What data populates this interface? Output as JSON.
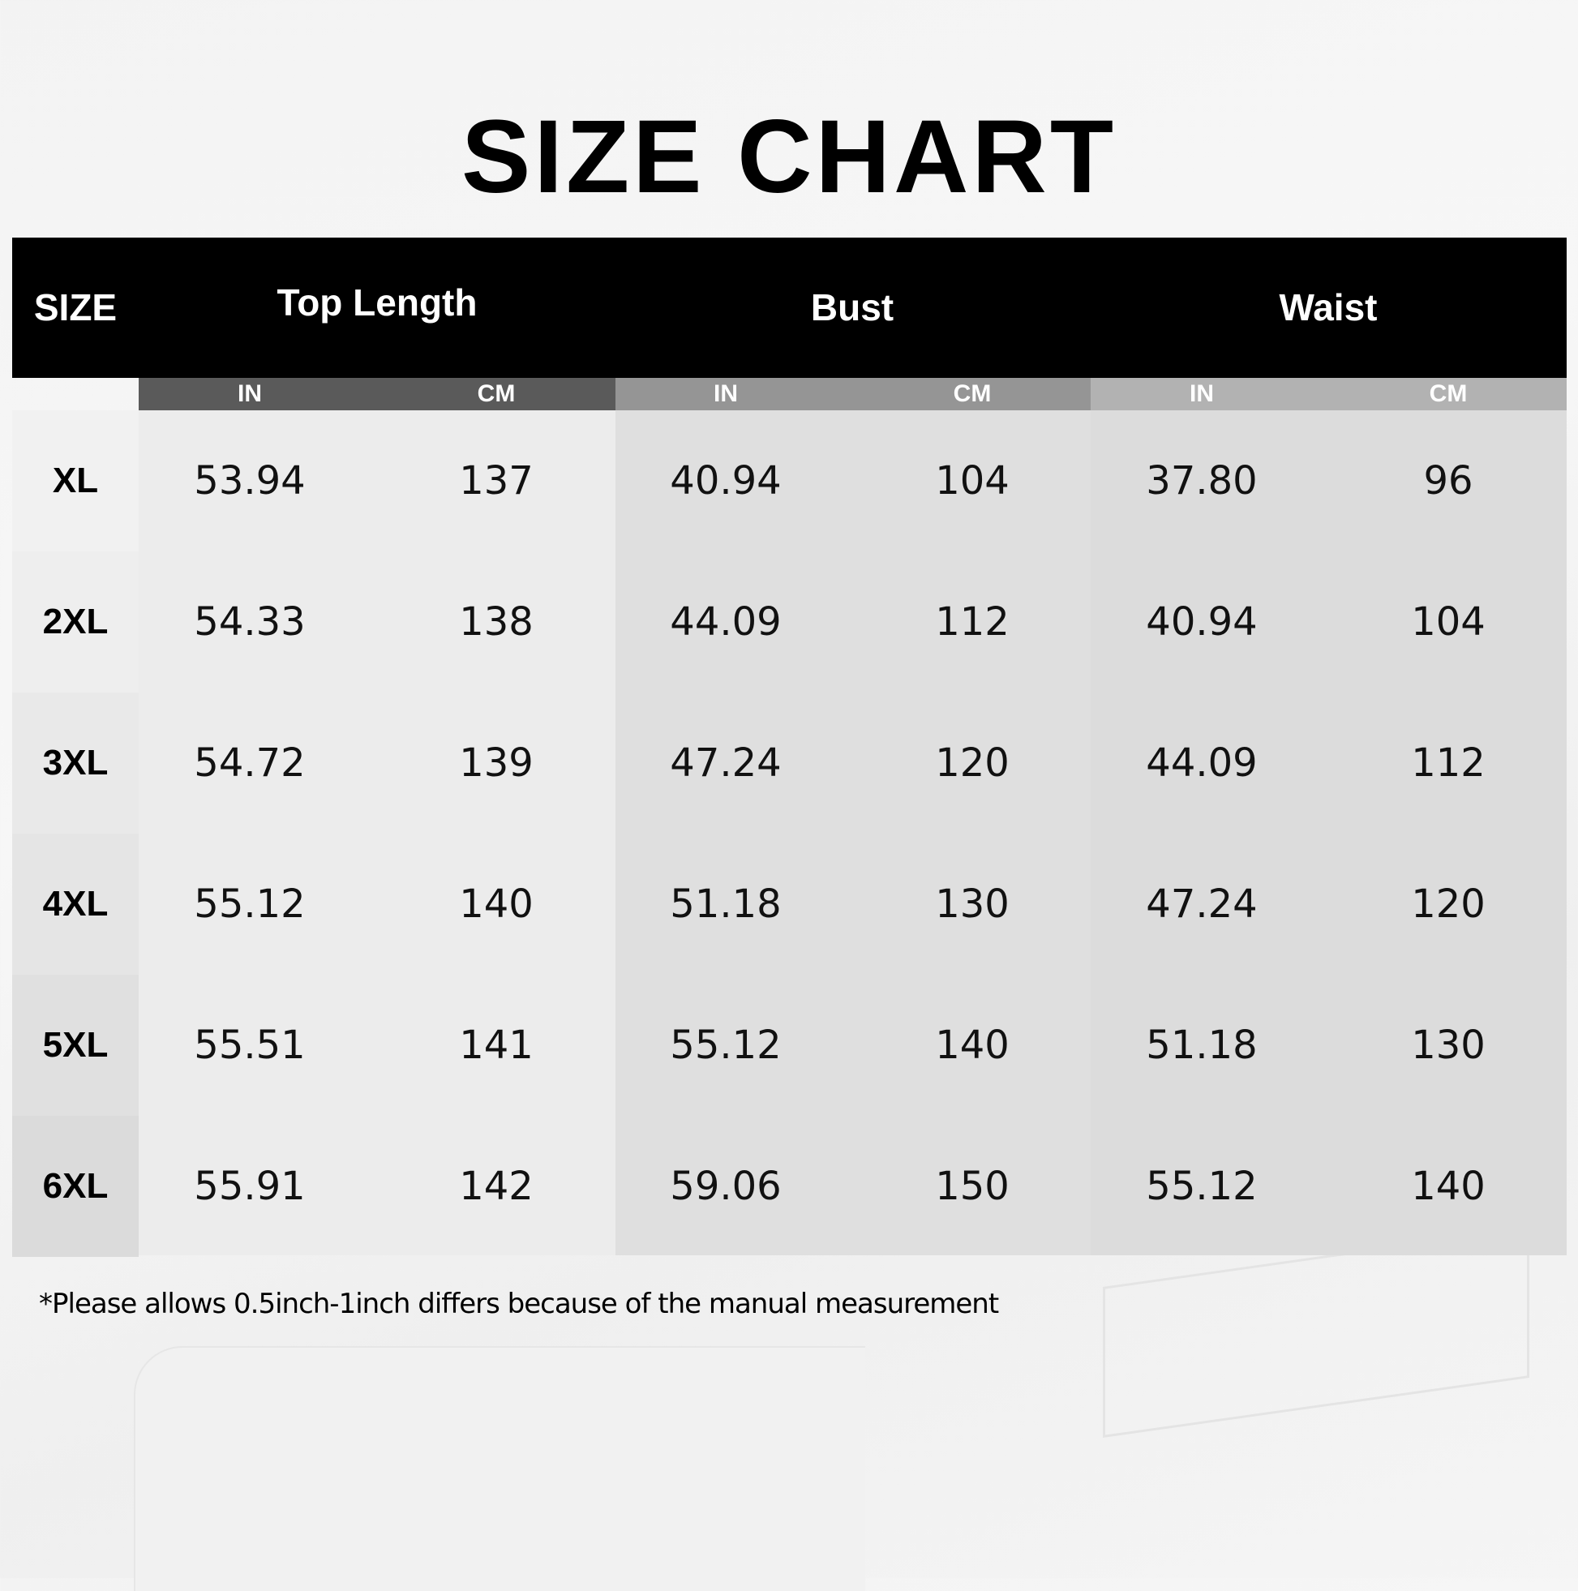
{
  "title": "SIZE CHART",
  "header": {
    "size": "SIZE",
    "groups": [
      "Top Length",
      "Bust",
      "Waist"
    ],
    "units": [
      "IN",
      "CM",
      "IN",
      "CM",
      "IN",
      "CM"
    ]
  },
  "rows": [
    {
      "size": "XL",
      "values": [
        "53.94",
        "137",
        "40.94",
        "104",
        "37.80",
        "96"
      ]
    },
    {
      "size": "2XL",
      "values": [
        "54.33",
        "138",
        "44.09",
        "112",
        "40.94",
        "104"
      ]
    },
    {
      "size": "3XL",
      "values": [
        "54.72",
        "139",
        "47.24",
        "120",
        "44.09",
        "112"
      ]
    },
    {
      "size": "4XL",
      "values": [
        "55.12",
        "140",
        "51.18",
        "130",
        "47.24",
        "120"
      ]
    },
    {
      "size": "5XL",
      "values": [
        "55.51",
        "141",
        "55.12",
        "140",
        "51.18",
        "130"
      ]
    },
    {
      "size": "6XL",
      "values": [
        "55.91",
        "142",
        "59.06",
        "150",
        "55.12",
        "140"
      ]
    }
  ],
  "note": "*Please allows 0.5inch-1inch differs because of the manual measurement",
  "colors": {
    "header": "#000000",
    "unit_top_length": "#5a5a5a",
    "unit_bust": "#959595",
    "unit_waist": "#b2b2b2"
  }
}
